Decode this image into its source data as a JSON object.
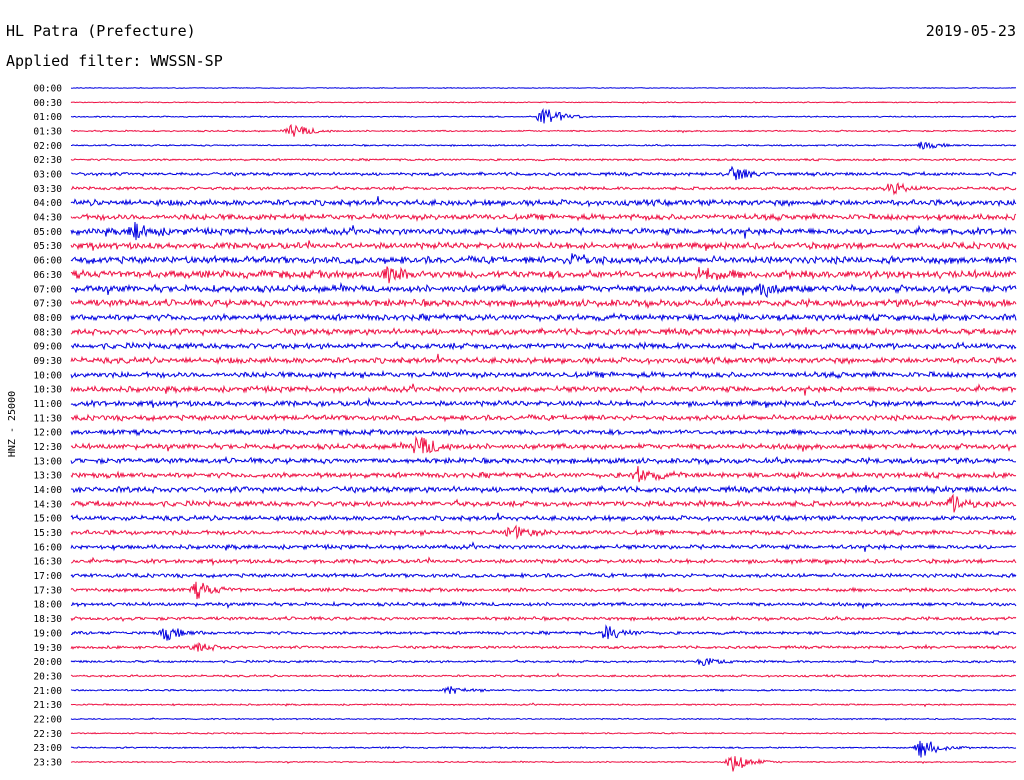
{
  "chart_data": {
    "type": "line",
    "title": "HL Patra (Prefecture)",
    "date": "2019-05-23",
    "subtitle": "Applied filter: WWSSN-SP",
    "ylabel": "HNZ - 25000",
    "row_labels": [
      "00:00",
      "00:30",
      "01:00",
      "01:30",
      "02:00",
      "02:30",
      "03:00",
      "03:30",
      "04:00",
      "04:30",
      "05:00",
      "05:30",
      "06:00",
      "06:30",
      "07:00",
      "07:30",
      "08:00",
      "08:30",
      "09:00",
      "09:30",
      "10:00",
      "10:30",
      "11:00",
      "11:30",
      "12:00",
      "12:30",
      "13:00",
      "13:30",
      "14:00",
      "14:30",
      "15:00",
      "15:30",
      "16:00",
      "16:30",
      "17:00",
      "17:30",
      "18:00",
      "18:30",
      "19:00",
      "19:30",
      "20:00",
      "20:30",
      "21:00",
      "21:30",
      "22:00",
      "22:30",
      "23:00",
      "23:30"
    ],
    "row_colors": [
      "#0000e0",
      "#ee1144"
    ],
    "noise_level": [
      0.3,
      0.4,
      0.5,
      0.6,
      0.6,
      0.8,
      1.3,
      1.2,
      2.3,
      2.3,
      2.5,
      2.5,
      2.8,
      3.0,
      2.7,
      2.7,
      2.5,
      2.4,
      2.3,
      2.3,
      2.2,
      2.2,
      2.1,
      2.1,
      2.0,
      2.1,
      2.1,
      2.1,
      2.3,
      2.2,
      1.9,
      1.8,
      1.7,
      1.6,
      1.5,
      1.4,
      1.4,
      1.3,
      1.2,
      1.1,
      0.9,
      0.8,
      0.7,
      0.6,
      0.5,
      0.5,
      0.6,
      0.5
    ],
    "events": [
      {
        "row": 2,
        "minute": 15,
        "amplitude": 12
      },
      {
        "row": 3,
        "minute": 7,
        "amplitude": 8
      },
      {
        "row": 4,
        "minute": 27,
        "amplitude": 4
      },
      {
        "row": 6,
        "minute": 21,
        "amplitude": 7
      },
      {
        "row": 7,
        "minute": 26,
        "amplitude": 6
      },
      {
        "row": 10,
        "minute": 2,
        "amplitude": 8
      },
      {
        "row": 12,
        "minute": 16,
        "amplitude": 6
      },
      {
        "row": 13,
        "minute": 10,
        "amplitude": 6
      },
      {
        "row": 13,
        "minute": 20,
        "amplitude": 6
      },
      {
        "row": 14,
        "minute": 22,
        "amplitude": 7
      },
      {
        "row": 25,
        "minute": 11,
        "amplitude": 11
      },
      {
        "row": 27,
        "minute": 18,
        "amplitude": 7
      },
      {
        "row": 29,
        "minute": 28,
        "amplitude": 7
      },
      {
        "row": 31,
        "minute": 14,
        "amplitude": 7
      },
      {
        "row": 35,
        "minute": 4,
        "amplitude": 8
      },
      {
        "row": 38,
        "minute": 17,
        "amplitude": 8
      },
      {
        "row": 38,
        "minute": 3,
        "amplitude": 7
      },
      {
        "row": 39,
        "minute": 4,
        "amplitude": 5
      },
      {
        "row": 40,
        "minute": 20,
        "amplitude": 4
      },
      {
        "row": 42,
        "minute": 12,
        "amplitude": 4
      },
      {
        "row": 46,
        "minute": 27,
        "amplitude": 11
      },
      {
        "row": 47,
        "minute": 21,
        "amplitude": 11
      }
    ]
  }
}
